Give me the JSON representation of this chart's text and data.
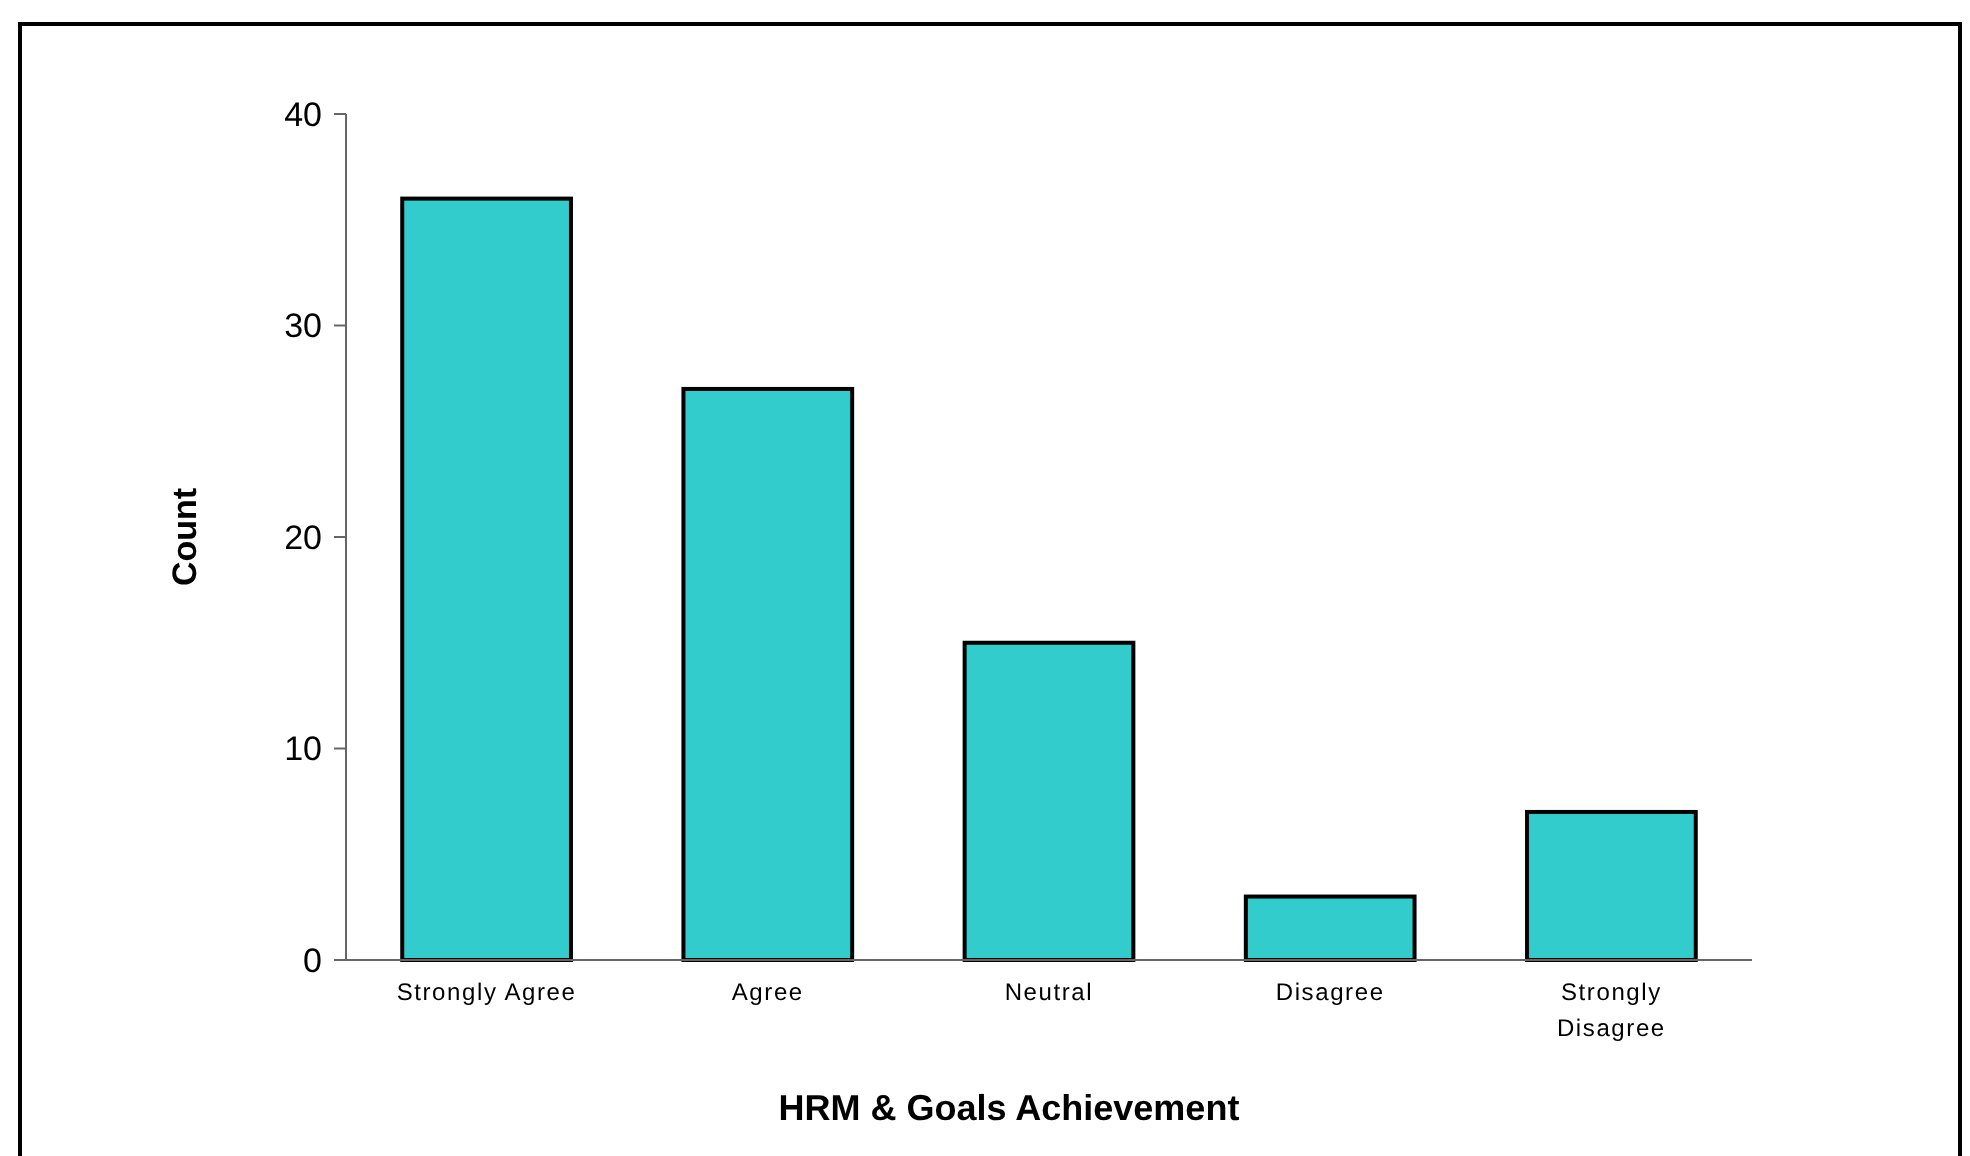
{
  "chart_data": {
    "type": "bar",
    "xlabel": "HRM & Goals Achievement",
    "ylabel": "Count",
    "categories": [
      "Strongly Agree",
      "Agree",
      "Neutral",
      "Disagree",
      "Strongly Disagree"
    ],
    "values": [
      36,
      27,
      15,
      3,
      7
    ],
    "color": "#33cccc",
    "ylim": [
      0,
      40
    ],
    "yticks": [
      0,
      10,
      20,
      30,
      40
    ],
    "grid": false
  }
}
